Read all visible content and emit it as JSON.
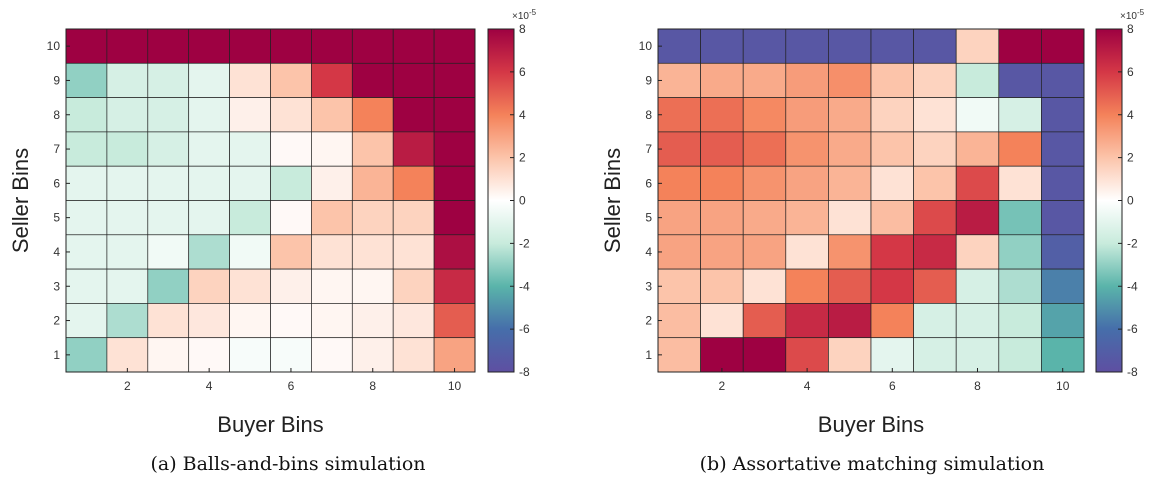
{
  "chart_data": [
    {
      "type": "heatmap",
      "caption": "(a) Balls-and-bins simulation",
      "xlabel": "Buyer Bins",
      "ylabel": "Seller Bins",
      "x_ticks": [
        "2",
        "4",
        "6",
        "8",
        "10"
      ],
      "y_ticks": [
        "1",
        "2",
        "3",
        "4",
        "5",
        "6",
        "7",
        "8",
        "9",
        "10"
      ],
      "colorbar": {
        "min": -8,
        "max": 8,
        "ticks": [
          "8",
          "6",
          "4",
          "2",
          "0",
          "-2",
          "-4",
          "-6",
          "-8"
        ],
        "exponent": "×10",
        "exponent_power": "-5"
      },
      "rows_top_to_bottom": [
        [
          8,
          8,
          8,
          8,
          8,
          8,
          8,
          8,
          8,
          8
        ],
        [
          -3,
          -1.5,
          -1.5,
          -1,
          1,
          2,
          6,
          8,
          8,
          8
        ],
        [
          -2,
          -1.5,
          -1.5,
          -1,
          0.5,
          1,
          2,
          4,
          8,
          8
        ],
        [
          -2,
          -2,
          -1.5,
          -1,
          -1,
          0.2,
          0.3,
          2,
          7,
          8
        ],
        [
          -1,
          -1,
          -1,
          -1,
          -1,
          -2,
          0.5,
          2.5,
          4,
          8
        ],
        [
          -1,
          -1,
          -1,
          -1,
          -2,
          0.2,
          2,
          1.5,
          1.5,
          8
        ],
        [
          -1,
          -1,
          -0.5,
          -2.5,
          -0.5,
          2,
          1,
          1,
          1,
          7.5
        ],
        [
          -1,
          -1,
          -3,
          1.5,
          1,
          0.5,
          0.3,
          0.3,
          1.5,
          6.5
        ],
        [
          -1,
          -2.5,
          1,
          0.8,
          0.3,
          0.2,
          0.3,
          0.5,
          0.8,
          5
        ],
        [
          -3,
          1,
          0.3,
          0.2,
          -0.3,
          -0.3,
          0.2,
          0.5,
          1,
          3
        ]
      ]
    },
    {
      "type": "heatmap",
      "caption": "(b) Assortative matching simulation",
      "xlabel": "Buyer Bins",
      "ylabel": "Seller Bins",
      "x_ticks": [
        "2",
        "4",
        "6",
        "8",
        "10"
      ],
      "y_ticks": [
        "1",
        "2",
        "3",
        "4",
        "5",
        "6",
        "7",
        "8",
        "9",
        "10"
      ],
      "colorbar": {
        "min": -8,
        "max": 8,
        "ticks": [
          "8",
          "6",
          "4",
          "2",
          "0",
          "-2",
          "-4",
          "-6",
          "-8"
        ],
        "exponent": "×10",
        "exponent_power": "-5"
      },
      "rows_top_to_bottom": [
        [
          -7.5,
          -7.5,
          -7.5,
          -7.5,
          -7.5,
          -7.5,
          -7.5,
          1.5,
          8,
          8
        ],
        [
          2.5,
          2.8,
          2.8,
          3.2,
          3.6,
          2,
          1.5,
          -2,
          -7.5,
          -7.5
        ],
        [
          4.5,
          4.5,
          3.8,
          3.2,
          2.8,
          1.5,
          1,
          -0.5,
          -1.5,
          -7.5
        ],
        [
          5,
          5,
          4.5,
          3.5,
          2.8,
          2,
          1.5,
          2.5,
          4,
          -7.5
        ],
        [
          4,
          4,
          3.5,
          3,
          2.5,
          1,
          2,
          5.5,
          1,
          -7.5
        ],
        [
          3,
          3,
          2.8,
          2.5,
          1,
          2.2,
          5.5,
          7,
          -3.5,
          -7.5
        ],
        [
          3,
          3,
          3,
          1,
          3.5,
          6,
          6.5,
          1.5,
          -3,
          -7
        ],
        [
          2,
          2,
          1,
          4,
          5,
          6,
          5,
          -1.5,
          -2.5,
          -5.5
        ],
        [
          2.2,
          1,
          5,
          6.5,
          7,
          4,
          -1.5,
          -1.5,
          -2,
          -4.5
        ],
        [
          2.2,
          8,
          8,
          5.5,
          1.5,
          -1,
          -1.5,
          -1.5,
          -2,
          -4
        ]
      ]
    }
  ]
}
